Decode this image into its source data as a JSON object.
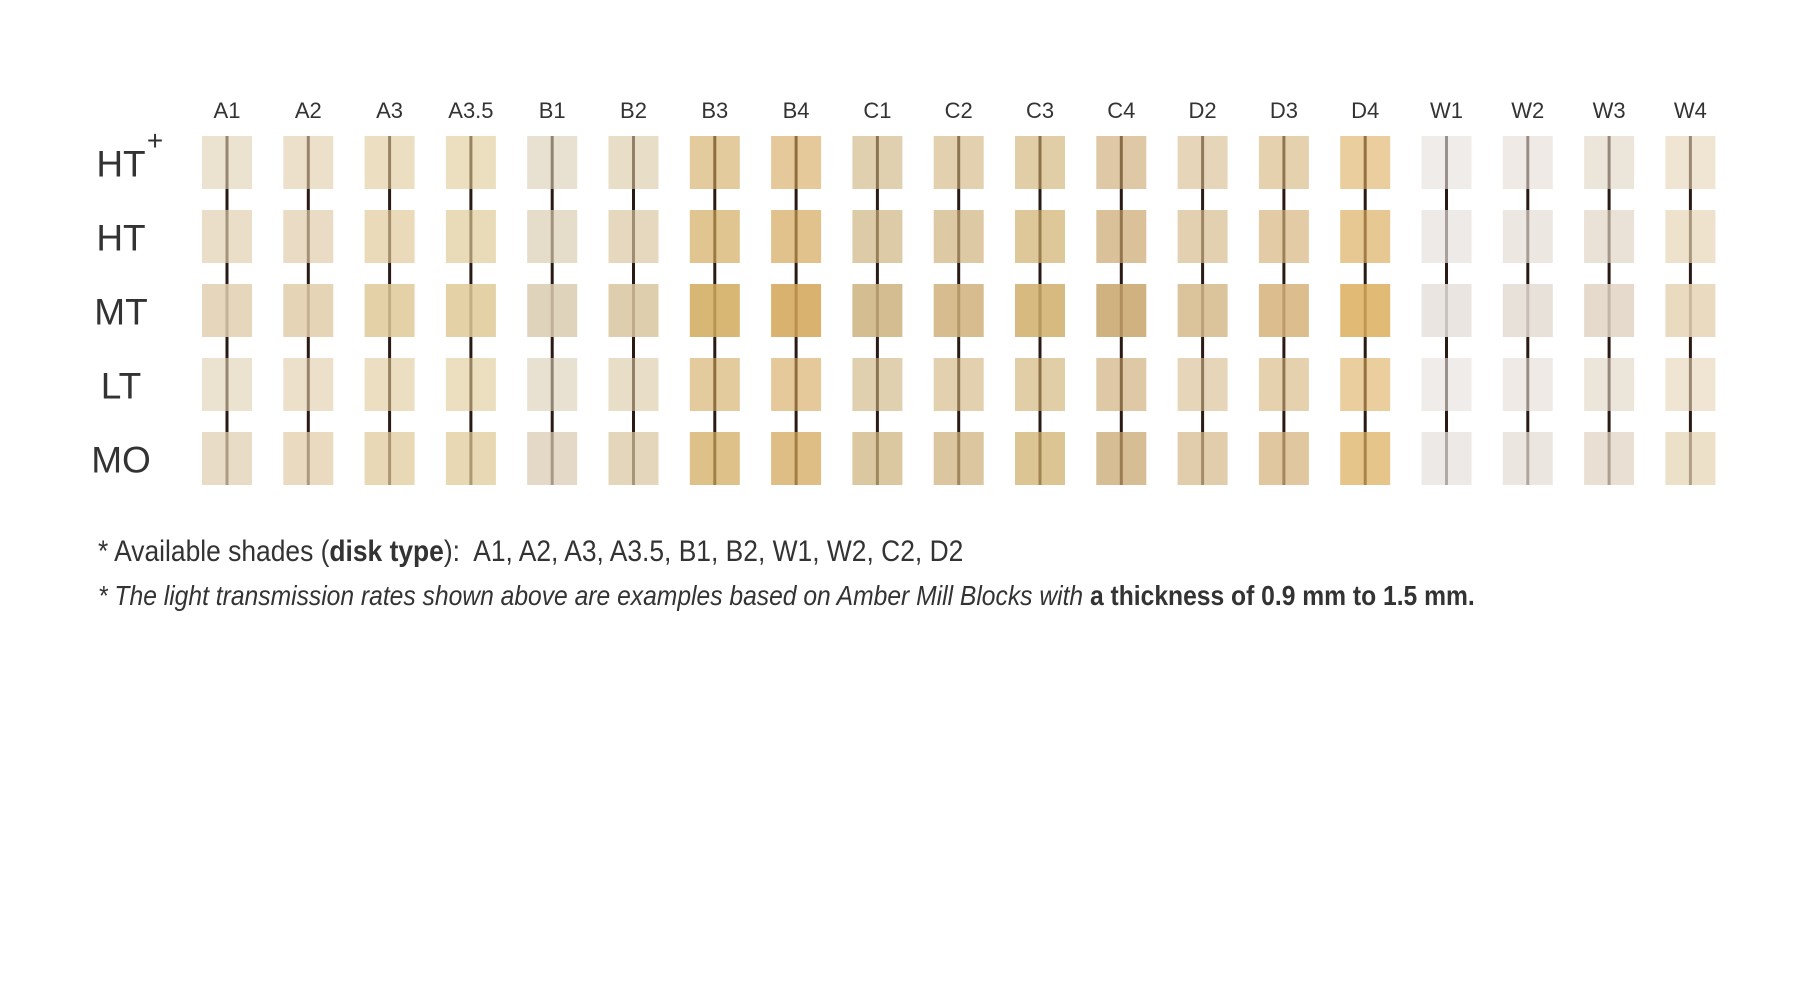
{
  "columns": [
    "A1",
    "A2",
    "A3",
    "A3.5",
    "B1",
    "B2",
    "B3",
    "B4",
    "C1",
    "C2",
    "C3",
    "C4",
    "D2",
    "D3",
    "D4",
    "W1",
    "W2",
    "W3",
    "W4"
  ],
  "rows": [
    {
      "label": "HT",
      "sup": "+"
    },
    {
      "label": "HT"
    },
    {
      "label": "MT"
    },
    {
      "label": "LT"
    },
    {
      "label": "MO"
    }
  ],
  "notes": {
    "line1": [
      "* Available shades (",
      "disk type",
      "):  A1, A2, A3, A3.5, B1, B2, W1, W2, C2, D2"
    ],
    "line2": [
      "* The light transmission rates shown above are examples based on Amber Mill Blocks with ",
      "a thickness of 0.9 mm to 1.5 mm."
    ]
  }
}
